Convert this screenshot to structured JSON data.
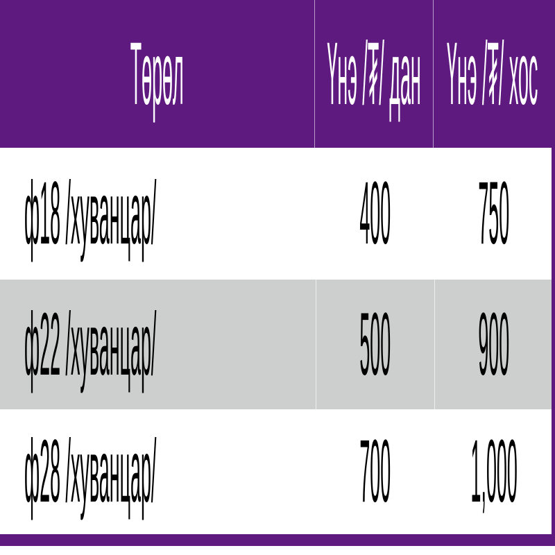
{
  "colors": {
    "header": "#5f1a80",
    "row_alt": "#cdcfce",
    "row": "#ffffff"
  },
  "table": {
    "headers": [
      "Төрөл",
      "Үнэ /₮/ дан",
      "Үнэ /₮/ хос"
    ],
    "rows": [
      [
        "ф18 /хуванцар/",
        "400",
        "750"
      ],
      [
        "ф22 /хуванцар/",
        "500",
        "900"
      ],
      [
        "ф28 /хуванцар/",
        "700",
        "1,000"
      ]
    ]
  }
}
